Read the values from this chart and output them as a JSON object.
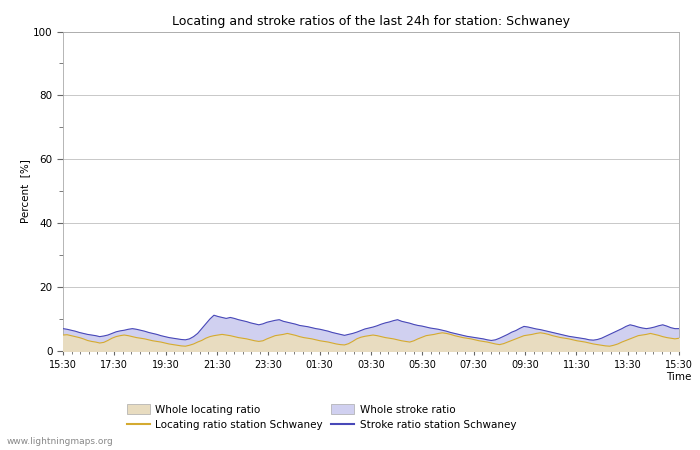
{
  "title": "Locating and stroke ratios of the last 24h for station: Schwaney",
  "ylabel": "Percent  [%]",
  "xlabel": "Time",
  "watermark": "www.lightningmaps.org",
  "ylim": [
    0,
    100
  ],
  "yticks": [
    0,
    20,
    40,
    60,
    80,
    100
  ],
  "yticks_minor": [
    10,
    30,
    50,
    70,
    90
  ],
  "xtick_labels": [
    "15:30",
    "17:30",
    "19:30",
    "21:30",
    "23:30",
    "01:30",
    "03:30",
    "05:30",
    "07:30",
    "09:30",
    "11:30",
    "13:30",
    "15:30"
  ],
  "bg_color": "#ffffff",
  "plot_bg_color": "#ffffff",
  "grid_color": "#c8c8c8",
  "whole_locating_fill_color": "#e8dcc0",
  "whole_stroke_fill_color": "#d0d0f0",
  "locating_line_color": "#d4aa30",
  "stroke_line_color": "#4848b8",
  "whole_locating_values": [
    5.0,
    5.1,
    4.8,
    4.5,
    4.2,
    3.8,
    3.3,
    3.0,
    2.8,
    2.5,
    2.7,
    3.3,
    4.0,
    4.5,
    4.8,
    5.0,
    4.8,
    4.5,
    4.2,
    4.0,
    3.8,
    3.5,
    3.2,
    3.0,
    2.8,
    2.5,
    2.2,
    2.0,
    1.8,
    1.6,
    1.5,
    1.8,
    2.2,
    2.8,
    3.3,
    4.0,
    4.5,
    4.8,
    5.0,
    5.2,
    5.0,
    4.8,
    4.5,
    4.2,
    4.0,
    3.8,
    3.5,
    3.2,
    3.0,
    3.2,
    3.8,
    4.3,
    4.8,
    5.0,
    5.2,
    5.5,
    5.2,
    4.9,
    4.5,
    4.2,
    4.0,
    3.8,
    3.5,
    3.2,
    3.0,
    2.8,
    2.5,
    2.2,
    2.0,
    1.9,
    2.3,
    3.0,
    3.8,
    4.3,
    4.6,
    4.8,
    5.0,
    4.8,
    4.5,
    4.2,
    4.0,
    3.8,
    3.5,
    3.2,
    3.0,
    2.8,
    3.2,
    3.8,
    4.3,
    4.8,
    5.0,
    5.2,
    5.5,
    5.7,
    5.5,
    5.2,
    4.8,
    4.5,
    4.2,
    4.0,
    3.8,
    3.5,
    3.2,
    3.0,
    2.8,
    2.5,
    2.2,
    2.0,
    2.3,
    2.8,
    3.3,
    3.8,
    4.3,
    4.8,
    5.0,
    5.2,
    5.5,
    5.7,
    5.5,
    5.2,
    4.8,
    4.5,
    4.2,
    4.0,
    3.8,
    3.5,
    3.2,
    3.0,
    2.8,
    2.5,
    2.2,
    2.0,
    1.8,
    1.6,
    1.5,
    1.8,
    2.2,
    2.8,
    3.3,
    3.8,
    4.3,
    4.8,
    5.0,
    5.2,
    5.5,
    5.2,
    4.9,
    4.5,
    4.2,
    4.0,
    3.8,
    4.0
  ],
  "whole_stroke_values": [
    7.0,
    6.8,
    6.5,
    6.2,
    5.8,
    5.5,
    5.2,
    5.0,
    4.8,
    4.5,
    4.7,
    5.0,
    5.5,
    6.0,
    6.3,
    6.5,
    6.8,
    7.0,
    6.8,
    6.5,
    6.2,
    5.8,
    5.5,
    5.2,
    4.8,
    4.5,
    4.2,
    4.0,
    3.8,
    3.6,
    3.5,
    3.8,
    4.5,
    5.5,
    7.0,
    8.5,
    10.0,
    11.2,
    10.8,
    10.5,
    10.2,
    10.5,
    10.2,
    9.8,
    9.5,
    9.2,
    8.8,
    8.5,
    8.2,
    8.5,
    9.0,
    9.3,
    9.6,
    9.8,
    9.3,
    9.0,
    8.7,
    8.4,
    8.0,
    7.8,
    7.6,
    7.3,
    7.0,
    6.8,
    6.5,
    6.2,
    5.8,
    5.5,
    5.2,
    4.9,
    5.2,
    5.5,
    5.9,
    6.4,
    6.9,
    7.2,
    7.5,
    7.9,
    8.4,
    8.8,
    9.1,
    9.5,
    9.8,
    9.3,
    9.0,
    8.7,
    8.3,
    8.0,
    7.8,
    7.5,
    7.2,
    7.0,
    6.8,
    6.5,
    6.2,
    5.8,
    5.5,
    5.2,
    4.9,
    4.6,
    4.4,
    4.2,
    4.0,
    3.8,
    3.5,
    3.3,
    3.5,
    4.0,
    4.6,
    5.2,
    5.9,
    6.4,
    7.1,
    7.7,
    7.5,
    7.2,
    6.9,
    6.7,
    6.4,
    6.1,
    5.8,
    5.5,
    5.2,
    4.9,
    4.6,
    4.4,
    4.2,
    4.0,
    3.8,
    3.5,
    3.4,
    3.6,
    4.0,
    4.6,
    5.2,
    5.8,
    6.4,
    7.0,
    7.7,
    8.2,
    7.9,
    7.5,
    7.2,
    7.0,
    7.2,
    7.5,
    7.9,
    8.2,
    7.8,
    7.3,
    7.0,
    7.0
  ],
  "locating_line_values": [
    5.0,
    5.1,
    4.8,
    4.5,
    4.2,
    3.8,
    3.3,
    3.0,
    2.8,
    2.5,
    2.7,
    3.3,
    4.0,
    4.5,
    4.8,
    5.0,
    4.8,
    4.5,
    4.2,
    4.0,
    3.8,
    3.5,
    3.2,
    3.0,
    2.8,
    2.5,
    2.2,
    2.0,
    1.8,
    1.6,
    1.5,
    1.8,
    2.2,
    2.8,
    3.3,
    4.0,
    4.5,
    4.8,
    5.0,
    5.2,
    5.0,
    4.8,
    4.5,
    4.2,
    4.0,
    3.8,
    3.5,
    3.2,
    3.0,
    3.2,
    3.8,
    4.3,
    4.8,
    5.0,
    5.2,
    5.5,
    5.2,
    4.9,
    4.5,
    4.2,
    4.0,
    3.8,
    3.5,
    3.2,
    3.0,
    2.8,
    2.5,
    2.2,
    2.0,
    1.9,
    2.3,
    3.0,
    3.8,
    4.3,
    4.6,
    4.8,
    5.0,
    4.8,
    4.5,
    4.2,
    4.0,
    3.8,
    3.5,
    3.2,
    3.0,
    2.8,
    3.2,
    3.8,
    4.3,
    4.8,
    5.0,
    5.2,
    5.5,
    5.7,
    5.5,
    5.2,
    4.8,
    4.5,
    4.2,
    4.0,
    3.8,
    3.5,
    3.2,
    3.0,
    2.8,
    2.5,
    2.2,
    2.0,
    2.3,
    2.8,
    3.3,
    3.8,
    4.3,
    4.8,
    5.0,
    5.2,
    5.5,
    5.7,
    5.5,
    5.2,
    4.8,
    4.5,
    4.2,
    4.0,
    3.8,
    3.5,
    3.2,
    3.0,
    2.8,
    2.5,
    2.2,
    2.0,
    1.8,
    1.6,
    1.5,
    1.8,
    2.2,
    2.8,
    3.3,
    3.8,
    4.3,
    4.8,
    5.0,
    5.2,
    5.5,
    5.2,
    4.9,
    4.5,
    4.2,
    4.0,
    3.8,
    4.0
  ],
  "stroke_line_values": [
    7.0,
    6.8,
    6.5,
    6.2,
    5.8,
    5.5,
    5.2,
    5.0,
    4.8,
    4.5,
    4.7,
    5.0,
    5.5,
    6.0,
    6.3,
    6.5,
    6.8,
    7.0,
    6.8,
    6.5,
    6.2,
    5.8,
    5.5,
    5.2,
    4.8,
    4.5,
    4.2,
    4.0,
    3.8,
    3.6,
    3.5,
    3.8,
    4.5,
    5.5,
    7.0,
    8.5,
    10.0,
    11.2,
    10.8,
    10.5,
    10.2,
    10.5,
    10.2,
    9.8,
    9.5,
    9.2,
    8.8,
    8.5,
    8.2,
    8.5,
    9.0,
    9.3,
    9.6,
    9.8,
    9.3,
    9.0,
    8.7,
    8.4,
    8.0,
    7.8,
    7.6,
    7.3,
    7.0,
    6.8,
    6.5,
    6.2,
    5.8,
    5.5,
    5.2,
    4.9,
    5.2,
    5.5,
    5.9,
    6.4,
    6.9,
    7.2,
    7.5,
    7.9,
    8.4,
    8.8,
    9.1,
    9.5,
    9.8,
    9.3,
    9.0,
    8.7,
    8.3,
    8.0,
    7.8,
    7.5,
    7.2,
    7.0,
    6.8,
    6.5,
    6.2,
    5.8,
    5.5,
    5.2,
    4.9,
    4.6,
    4.4,
    4.2,
    4.0,
    3.8,
    3.5,
    3.3,
    3.5,
    4.0,
    4.6,
    5.2,
    5.9,
    6.4,
    7.1,
    7.7,
    7.5,
    7.2,
    6.9,
    6.7,
    6.4,
    6.1,
    5.8,
    5.5,
    5.2,
    4.9,
    4.6,
    4.4,
    4.2,
    4.0,
    3.8,
    3.5,
    3.4,
    3.6,
    4.0,
    4.6,
    5.2,
    5.8,
    6.4,
    7.0,
    7.7,
    8.2,
    7.9,
    7.5,
    7.2,
    7.0,
    7.2,
    7.5,
    7.9,
    8.2,
    7.8,
    7.3,
    7.0,
    7.0
  ]
}
